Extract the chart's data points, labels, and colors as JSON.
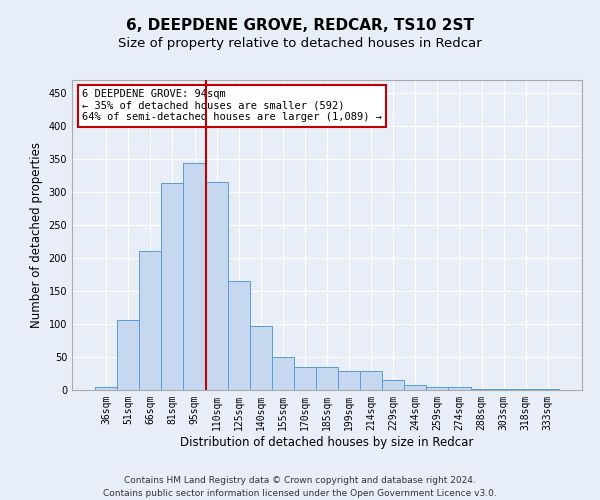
{
  "title": "6, DEEPDENE GROVE, REDCAR, TS10 2ST",
  "subtitle": "Size of property relative to detached houses in Redcar",
  "xlabel": "Distribution of detached houses by size in Redcar",
  "ylabel": "Number of detached properties",
  "categories": [
    "36sqm",
    "51sqm",
    "66sqm",
    "81sqm",
    "95sqm",
    "110sqm",
    "125sqm",
    "140sqm",
    "155sqm",
    "170sqm",
    "185sqm",
    "199sqm",
    "214sqm",
    "229sqm",
    "244sqm",
    "259sqm",
    "274sqm",
    "288sqm",
    "303sqm",
    "318sqm",
    "333sqm"
  ],
  "values": [
    5,
    106,
    210,
    314,
    344,
    316,
    166,
    97,
    50,
    35,
    35,
    29,
    29,
    15,
    8,
    5,
    5,
    1,
    1,
    1,
    1
  ],
  "bar_color": "#c5d8f0",
  "bar_edge_color": "#5b9bd5",
  "highlight_index": 4,
  "highlight_color": "#c00000",
  "annotation_line1": "6 DEEPDENE GROVE: 94sqm",
  "annotation_line2": "← 35% of detached houses are smaller (592)",
  "annotation_line3": "64% of semi-detached houses are larger (1,089) →",
  "annotation_box_color": "#ffffff",
  "annotation_box_edge": "#c00000",
  "ylim": [
    0,
    470
  ],
  "yticks": [
    0,
    50,
    100,
    150,
    200,
    250,
    300,
    350,
    400,
    450
  ],
  "footer_line1": "Contains HM Land Registry data © Crown copyright and database right 2024.",
  "footer_line2": "Contains public sector information licensed under the Open Government Licence v3.0.",
  "bg_color": "#e8eef8",
  "grid_color": "#ffffff",
  "title_fontsize": 11,
  "subtitle_fontsize": 9.5,
  "axis_label_fontsize": 8.5,
  "tick_fontsize": 7,
  "annotation_fontsize": 7.5,
  "footer_fontsize": 6.5
}
